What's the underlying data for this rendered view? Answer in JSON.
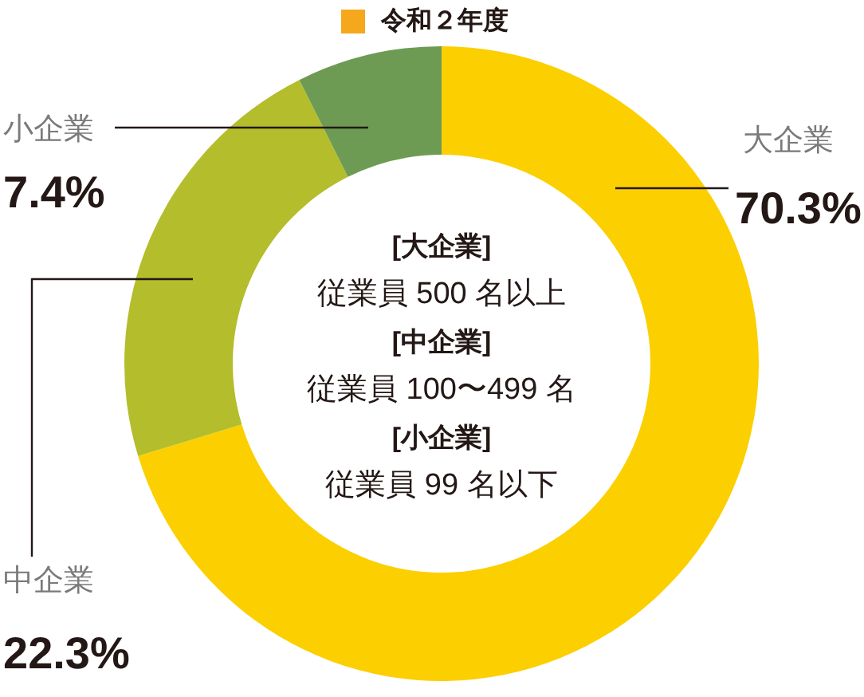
{
  "chart_data": {
    "type": "donut",
    "title": "令和２年度",
    "categories": [
      "大企業",
      "中企業",
      "小企業"
    ],
    "values": [
      70.3,
      22.3,
      7.4
    ],
    "colors": [
      "#fccf00",
      "#b4bd2b",
      "#6e9b53"
    ],
    "value_labels": [
      "70.3%",
      "22.3%",
      "7.4%"
    ],
    "annotations": [
      "[大企業]",
      "従業員 500 名以上",
      "[中企業]",
      "従業員 100〜499 名",
      "[小企業]",
      "従業員 99 名以下"
    ]
  }
}
